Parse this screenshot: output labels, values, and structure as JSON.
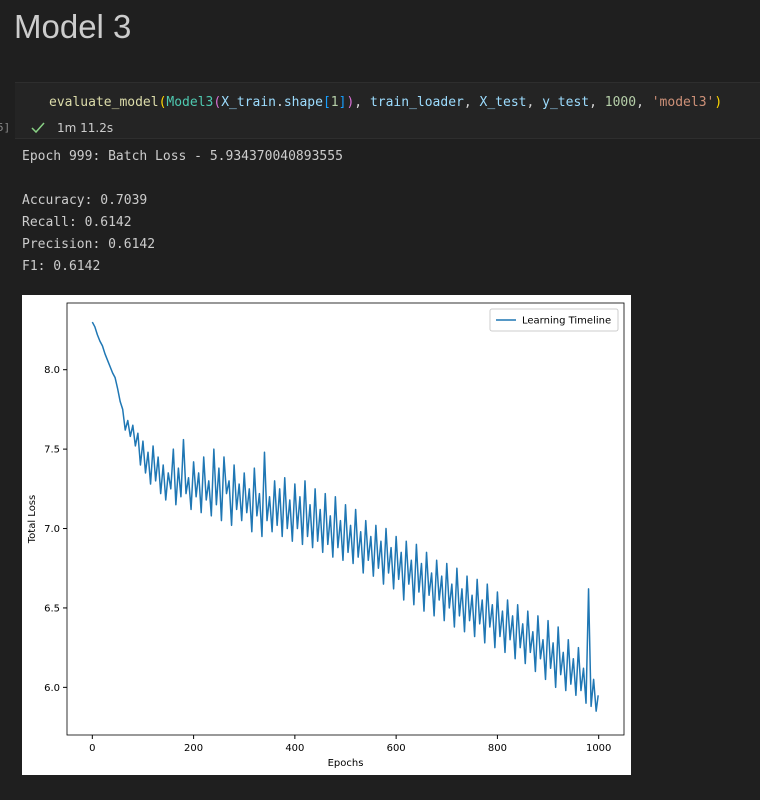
{
  "header": {
    "title": "Model 3"
  },
  "cell": {
    "execution_count": "5]",
    "duration": "1m 11.2s",
    "tokens": [
      {
        "text": "evaluate_model",
        "color": "#dcdcaa"
      },
      {
        "text": "(",
        "color": "#ffd700"
      },
      {
        "text": "Model3",
        "color": "#4ec9b0"
      },
      {
        "text": "(",
        "color": "#da70d6"
      },
      {
        "text": "X_train",
        "color": "#9cdcfe"
      },
      {
        "text": ".",
        "color": "#d4d4d4"
      },
      {
        "text": "shape",
        "color": "#9cdcfe"
      },
      {
        "text": "[",
        "color": "#179fff"
      },
      {
        "text": "1",
        "color": "#b5cea8"
      },
      {
        "text": "]",
        "color": "#179fff"
      },
      {
        "text": ")",
        "color": "#da70d6"
      },
      {
        "text": ", ",
        "color": "#d4d4d4"
      },
      {
        "text": "train_loader",
        "color": "#9cdcfe"
      },
      {
        "text": ", ",
        "color": "#d4d4d4"
      },
      {
        "text": "X_test",
        "color": "#9cdcfe"
      },
      {
        "text": ", ",
        "color": "#d4d4d4"
      },
      {
        "text": "y_test",
        "color": "#9cdcfe"
      },
      {
        "text": ", ",
        "color": "#d4d4d4"
      },
      {
        "text": "1000",
        "color": "#b5cea8"
      },
      {
        "text": ", ",
        "color": "#d4d4d4"
      },
      {
        "text": "'model3'",
        "color": "#ce9178"
      },
      {
        "text": ")",
        "color": "#ffd700"
      }
    ]
  },
  "output": {
    "epoch_line": "Epoch 999: Batch Loss - 5.934370040893555",
    "metrics": [
      "Accuracy: 0.7039",
      "Recall: 0.6142",
      "Precision: 0.6142",
      "F1: 0.6142"
    ]
  },
  "chart_data": {
    "type": "line",
    "xlabel": "Epochs",
    "ylabel": "Total Loss",
    "legend": "upper right",
    "grid": false,
    "xlim": [
      -50,
      1050
    ],
    "ylim": [
      5.7,
      8.42
    ],
    "xticks": [
      0,
      200,
      400,
      600,
      800,
      1000
    ],
    "yticks": [
      {
        "value": 6,
        "label": "6.0"
      },
      {
        "value": 6.5,
        "label": "6.5"
      },
      {
        "value": 7,
        "label": "7.0"
      },
      {
        "value": 7.5,
        "label": "7.5"
      },
      {
        "value": 8,
        "label": "8.0"
      }
    ],
    "x": [
      0,
      5,
      10,
      15,
      20,
      25,
      30,
      35,
      40,
      45,
      50,
      55,
      60,
      65,
      70,
      75,
      80,
      85,
      90,
      95,
      100,
      105,
      110,
      115,
      120,
      125,
      130,
      135,
      140,
      145,
      150,
      155,
      160,
      165,
      170,
      175,
      180,
      185,
      190,
      195,
      200,
      205,
      210,
      215,
      220,
      225,
      230,
      235,
      240,
      245,
      250,
      255,
      260,
      265,
      270,
      275,
      280,
      285,
      290,
      295,
      300,
      305,
      310,
      315,
      320,
      325,
      330,
      335,
      340,
      345,
      350,
      355,
      360,
      365,
      370,
      375,
      380,
      385,
      390,
      395,
      400,
      405,
      410,
      415,
      420,
      425,
      430,
      435,
      440,
      445,
      450,
      455,
      460,
      465,
      470,
      475,
      480,
      485,
      490,
      495,
      500,
      505,
      510,
      515,
      520,
      525,
      530,
      535,
      540,
      545,
      550,
      555,
      560,
      565,
      570,
      575,
      580,
      585,
      590,
      595,
      600,
      605,
      610,
      615,
      620,
      625,
      630,
      635,
      640,
      645,
      650,
      655,
      660,
      665,
      670,
      675,
      680,
      685,
      690,
      695,
      700,
      705,
      710,
      715,
      720,
      725,
      730,
      735,
      740,
      745,
      750,
      755,
      760,
      765,
      770,
      775,
      780,
      785,
      790,
      795,
      800,
      805,
      810,
      815,
      820,
      825,
      830,
      835,
      840,
      845,
      850,
      855,
      860,
      865,
      870,
      875,
      880,
      885,
      890,
      895,
      900,
      905,
      910,
      915,
      920,
      925,
      930,
      935,
      940,
      945,
      950,
      955,
      960,
      965,
      970,
      975,
      980,
      985,
      990,
      995,
      999
    ],
    "series": [
      {
        "name": "Learning Timeline",
        "color": "#1f77b4",
        "values": [
          8.3,
          8.27,
          8.22,
          8.18,
          8.15,
          8.1,
          8.06,
          8.02,
          7.98,
          7.95,
          7.88,
          7.8,
          7.75,
          7.62,
          7.68,
          7.58,
          7.65,
          7.52,
          7.6,
          7.4,
          7.55,
          7.35,
          7.48,
          7.28,
          7.52,
          7.3,
          7.45,
          7.22,
          7.4,
          7.18,
          7.35,
          7.25,
          7.5,
          7.15,
          7.38,
          7.2,
          7.56,
          7.22,
          7.32,
          7.12,
          7.42,
          7.2,
          7.35,
          7.1,
          7.45,
          7.18,
          7.3,
          7.08,
          7.5,
          7.15,
          7.38,
          7.05,
          7.45,
          7.22,
          7.3,
          7.02,
          7.4,
          7.12,
          7.28,
          7.05,
          7.35,
          7.1,
          7.25,
          6.98,
          7.38,
          7.08,
          7.22,
          6.95,
          7.48,
          7.05,
          7.2,
          6.98,
          7.3,
          7.02,
          7.25,
          6.95,
          7.32,
          7.0,
          7.18,
          6.92,
          7.28,
          7.0,
          7.2,
          6.9,
          7.3,
          6.95,
          7.15,
          6.88,
          7.25,
          6.92,
          7.12,
          6.85,
          7.22,
          6.9,
          7.08,
          6.82,
          7.2,
          6.88,
          7.05,
          6.8,
          7.15,
          6.85,
          7.02,
          6.78,
          7.12,
          6.82,
          6.98,
          6.72,
          7.05,
          6.8,
          6.95,
          6.7,
          7.02,
          6.75,
          6.92,
          6.65,
          7.0,
          6.72,
          6.88,
          6.62,
          6.95,
          6.68,
          6.85,
          6.55,
          6.92,
          6.65,
          6.8,
          6.52,
          6.9,
          6.6,
          6.78,
          6.48,
          6.85,
          6.58,
          6.72,
          6.45,
          6.8,
          6.55,
          6.7,
          6.42,
          6.78,
          6.5,
          6.65,
          6.38,
          6.75,
          6.45,
          6.62,
          6.35,
          6.7,
          6.42,
          6.58,
          6.32,
          6.68,
          6.4,
          6.55,
          6.28,
          6.65,
          6.38,
          6.52,
          6.25,
          6.6,
          6.32,
          6.48,
          6.22,
          6.55,
          6.3,
          6.45,
          6.18,
          6.52,
          6.25,
          6.4,
          6.15,
          6.48,
          6.22,
          6.35,
          6.1,
          6.45,
          6.18,
          6.3,
          6.05,
          6.42,
          6.12,
          6.28,
          6.0,
          6.38,
          6.08,
          6.22,
          5.98,
          6.3,
          6.02,
          6.18,
          5.95,
          6.25,
          5.98,
          6.12,
          5.9,
          6.62,
          5.88,
          6.05,
          5.85,
          5.95
        ]
      }
    ]
  }
}
